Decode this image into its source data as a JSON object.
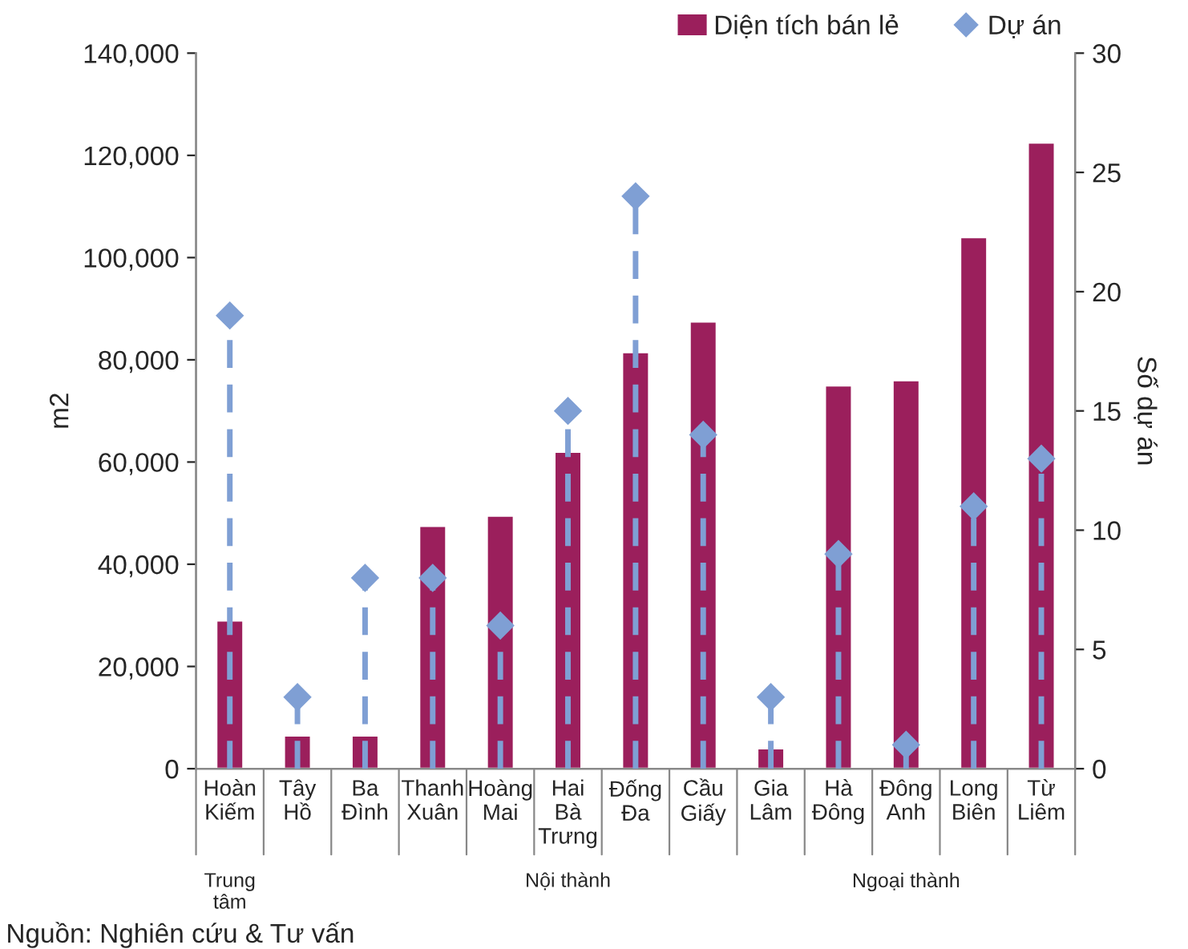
{
  "chart_data": {
    "type": "bar",
    "categories": [
      "Hoàn\nKiếm",
      "Tây\nHồ",
      "Ba\nĐình",
      "Thanh\nXuân",
      "Hoàng\nMai",
      "Hai\nBà\nTrưng",
      "Đống\nĐa",
      "Cầu\nGiấy",
      "Gia\nLâm",
      "Hà\nĐông",
      "Đông\nAnh",
      "Long\nBiên",
      "Từ\nLiêm"
    ],
    "series": [
      {
        "name": "Diện tích bán lẻ",
        "color": "#9b1f5c",
        "values": [
          29000,
          6500,
          6500,
          47500,
          49500,
          62000,
          81500,
          87500,
          4000,
          75000,
          76000,
          104000,
          122500
        ]
      },
      {
        "name": "Dự án",
        "type": "lollipop",
        "axis": "y2",
        "color": "#7f9fd4",
        "marker": "diamond",
        "line_style": "dashed",
        "values": [
          19,
          3,
          8,
          8,
          6,
          15,
          24,
          14,
          3,
          9,
          1,
          11,
          13
        ]
      }
    ],
    "ylabel": "m2",
    "y2label": "Số dự án",
    "ylim": [
      0,
      140000
    ],
    "yticks": [
      {
        "value": 0,
        "label": "0"
      },
      {
        "value": 20000,
        "label": "20,000"
      },
      {
        "value": 40000,
        "label": "40,000"
      },
      {
        "value": 60000,
        "label": "60,000"
      },
      {
        "value": 80000,
        "label": "80,000"
      },
      {
        "value": 100000,
        "label": "100,000"
      },
      {
        "value": 120000,
        "label": "120,000"
      },
      {
        "value": 140000,
        "label": "140,000"
      }
    ],
    "y2lim": [
      0,
      30
    ],
    "y2ticks": [
      0,
      5,
      10,
      15,
      20,
      25,
      30
    ],
    "legend": "top right",
    "grid": false,
    "annotations": [
      "Trung\ntâm",
      "Nội thành",
      "Ngoại thành",
      "Nguồn: Nghiên cứu & Tư vấn"
    ]
  }
}
